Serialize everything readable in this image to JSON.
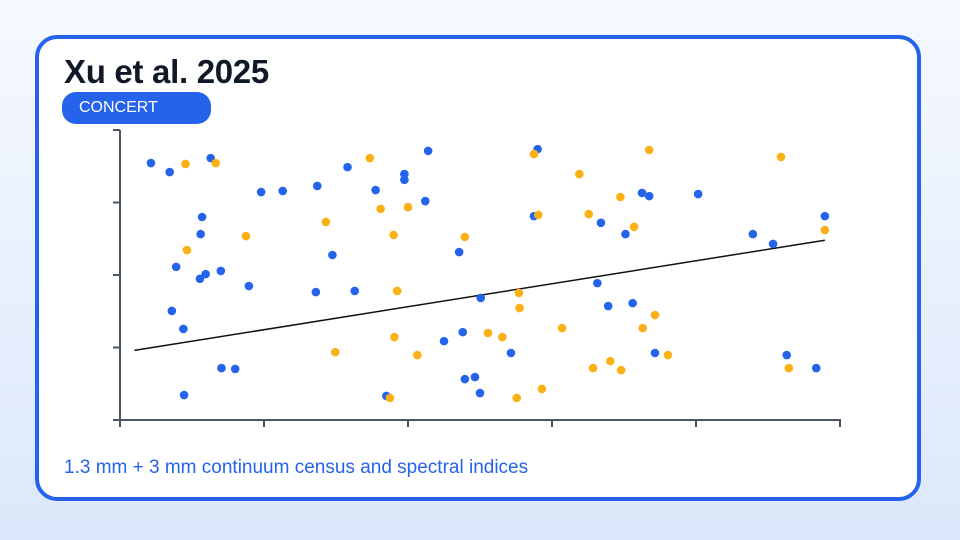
{
  "card": {
    "title": "Xu et al. 2025",
    "badge": "CONCERT",
    "caption": "1.3 mm + 3 mm continuum census and spectral indices"
  },
  "colors": {
    "accent": "#2563eb",
    "blue_points": "#2563eb",
    "orange_points": "#fbb115",
    "trend_line": "#111111",
    "axis": "#4b5563"
  },
  "chart_data": {
    "type": "scatter",
    "xlim": [
      0,
      100
    ],
    "ylim": [
      0,
      100
    ],
    "x_ticks": [
      0,
      20,
      40,
      60,
      80,
      100
    ],
    "y_ticks": [
      0,
      25,
      50,
      75,
      100
    ],
    "grid": false,
    "legend": "none",
    "series": [
      {
        "color": "#2563eb",
        "points": [
          [
            4.3,
            88.6
          ],
          [
            6.9,
            85.5
          ],
          [
            7.2,
            37.6
          ],
          [
            7.8,
            52.8
          ],
          [
            8.8,
            31.4
          ],
          [
            8.9,
            8.6
          ],
          [
            11.1,
            48.7
          ],
          [
            11.2,
            64.1
          ],
          [
            11.4,
            70.0
          ],
          [
            11.9,
            50.3
          ],
          [
            12.6,
            90.3
          ],
          [
            14.1,
            17.9
          ],
          [
            14.0,
            51.4
          ],
          [
            16.0,
            17.6
          ],
          [
            17.9,
            46.2
          ],
          [
            19.6,
            78.6
          ],
          [
            22.6,
            79.0
          ],
          [
            27.2,
            44.1
          ],
          [
            27.4,
            80.7
          ],
          [
            29.5,
            56.9
          ],
          [
            31.6,
            87.2
          ],
          [
            32.6,
            44.5
          ],
          [
            35.5,
            79.3
          ],
          [
            37.0,
            8.3
          ],
          [
            39.5,
            82.8
          ],
          [
            39.5,
            84.8
          ],
          [
            42.4,
            75.5
          ],
          [
            42.8,
            92.8
          ],
          [
            45.0,
            27.2
          ],
          [
            47.1,
            57.9
          ],
          [
            47.6,
            30.3
          ],
          [
            47.9,
            14.1
          ],
          [
            49.3,
            14.8
          ],
          [
            50.0,
            9.3
          ],
          [
            50.1,
            42.1
          ],
          [
            54.3,
            23.1
          ],
          [
            57.5,
            70.3
          ],
          [
            58.0,
            93.4
          ],
          [
            66.3,
            47.2
          ],
          [
            66.8,
            68.0
          ],
          [
            67.8,
            39.3
          ],
          [
            70.2,
            64.1
          ],
          [
            71.2,
            40.3
          ],
          [
            72.5,
            78.3
          ],
          [
            73.5,
            77.2
          ],
          [
            74.3,
            23.1
          ],
          [
            80.3,
            77.9
          ],
          [
            87.9,
            64.1
          ],
          [
            90.7,
            60.7
          ],
          [
            92.6,
            22.4
          ],
          [
            96.7,
            17.9
          ],
          [
            97.9,
            70.3
          ]
        ]
      },
      {
        "color": "#fbb115",
        "points": [
          [
            9.1,
            88.3
          ],
          [
            9.3,
            58.6
          ],
          [
            13.3,
            88.6
          ],
          [
            17.5,
            63.4
          ],
          [
            28.6,
            68.3
          ],
          [
            29.9,
            23.4
          ],
          [
            34.7,
            90.3
          ],
          [
            36.2,
            72.8
          ],
          [
            37.5,
            7.6
          ],
          [
            38.0,
            63.8
          ],
          [
            38.1,
            28.6
          ],
          [
            38.5,
            44.5
          ],
          [
            40.0,
            73.4
          ],
          [
            41.3,
            22.4
          ],
          [
            47.9,
            63.1
          ],
          [
            51.1,
            30.0
          ],
          [
            53.1,
            28.6
          ],
          [
            55.1,
            7.6
          ],
          [
            55.4,
            43.8
          ],
          [
            55.5,
            38.6
          ],
          [
            57.5,
            91.7
          ],
          [
            58.1,
            70.7
          ],
          [
            58.6,
            10.7
          ],
          [
            61.4,
            31.7
          ],
          [
            63.8,
            84.8
          ],
          [
            65.1,
            71.0
          ],
          [
            65.7,
            17.9
          ],
          [
            68.1,
            20.3
          ],
          [
            69.5,
            76.9
          ],
          [
            69.6,
            17.2
          ],
          [
            71.4,
            66.6
          ],
          [
            72.6,
            31.7
          ],
          [
            73.5,
            93.1
          ],
          [
            74.3,
            36.2
          ],
          [
            76.1,
            22.4
          ],
          [
            91.8,
            90.7
          ],
          [
            92.9,
            17.9
          ],
          [
            97.9,
            65.5
          ]
        ]
      }
    ],
    "trend_line": {
      "x": [
        2,
        97.9
      ],
      "y": [
        24,
        62
      ]
    }
  }
}
